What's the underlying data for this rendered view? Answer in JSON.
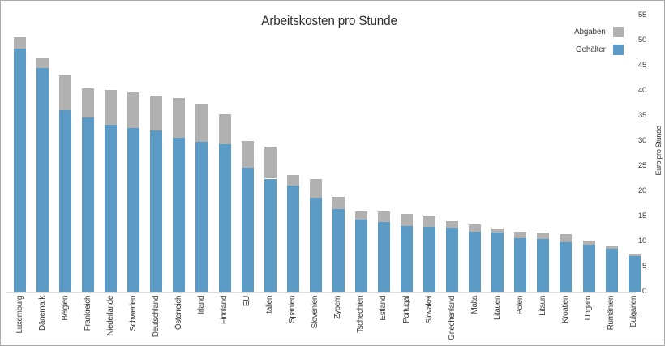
{
  "chart_data": {
    "type": "bar",
    "stacked": true,
    "title": "Arbeitskosten pro Stunde",
    "xlabel": "",
    "ylabel": "Euro pro Stunde",
    "ylim": [
      0,
      57
    ],
    "yticks": [
      0,
      5,
      10,
      15,
      20,
      25,
      30,
      35,
      40,
      45,
      50,
      55
    ],
    "grid": false,
    "legend_position": "top-right",
    "categories": [
      "Luxemburg",
      "Dänemark",
      "Belgien",
      "Frankreich",
      "Niederlande",
      "Schweden",
      "Deutschland",
      "Österreich",
      "Irland",
      "Finnland",
      "EU",
      "Italien",
      "Spanien",
      "Slovenien",
      "Zypern",
      "Tschechien",
      "Estland",
      "Portugal",
      "Slovakei",
      "Griechenland",
      "Malta",
      "Litauen",
      "Polen",
      "Litaun",
      "Kroatien",
      "Ungarn",
      "Rumänien",
      "Bulgarien"
    ],
    "series": [
      {
        "name": "Gehälter",
        "color": "#5b9bc6",
        "values": [
          48.4,
          44.5,
          36.2,
          34.6,
          33.2,
          32.6,
          32.1,
          30.6,
          29.8,
          29.4,
          24.6,
          22.5,
          21.1,
          18.7,
          16.5,
          14.3,
          13.8,
          13.0,
          12.9,
          12.7,
          12.0,
          11.8,
          10.6,
          10.5,
          9.8,
          9.4,
          8.6,
          7.1
        ]
      },
      {
        "name": "Abgaben",
        "color": "#b2b1b1",
        "values": [
          2.3,
          2.0,
          6.9,
          5.9,
          7.0,
          7.1,
          6.9,
          7.9,
          7.6,
          6.0,
          5.4,
          6.4,
          2.2,
          3.8,
          2.4,
          1.7,
          2.1,
          2.5,
          2.1,
          1.4,
          1.4,
          0.8,
          1.3,
          1.2,
          1.7,
          0.8,
          0.5,
          0.4
        ]
      }
    ]
  }
}
